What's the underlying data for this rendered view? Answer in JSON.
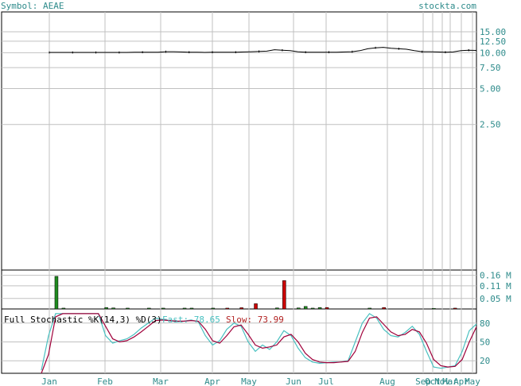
{
  "header": {
    "symbol_label": "Symbol: AEAE",
    "site": "stockta.com"
  },
  "colors": {
    "grid": "#c0c0c0",
    "axis_text": "#2e8b8b",
    "price": "#000000",
    "vol_up": "#1f8a1f",
    "vol_down": "#cc0000",
    "fast_line": "#48c0c0",
    "slow_line": "#a0003a"
  },
  "chart_data": [
    {
      "type": "line",
      "panel": "price",
      "y_scale": "log",
      "y_ticks": [
        "15.00",
        "12.50",
        "10.00",
        "7.50",
        "5.00",
        "2.50"
      ],
      "y_tick_values": [
        15,
        12.5,
        10,
        7.5,
        5,
        2.5
      ],
      "x_tick_labels": [
        "Jan",
        "Feb",
        "Mar",
        "Apr",
        "May",
        "Jun",
        "Jul",
        "Aug",
        "Sep",
        "Oct",
        "Nov",
        "Mar",
        "Apr",
        "May"
      ],
      "series": [
        {
          "values": [
            10.05,
            10.05,
            10.05,
            10.05,
            10.05,
            10.05,
            10.05,
            10.05,
            10.05,
            10.05,
            10.05,
            10.1,
            10.1,
            10.1,
            10.1,
            10.2,
            10.2,
            10.15,
            10.1,
            10.1,
            10.05,
            10.1,
            10.1,
            10.1,
            10.1,
            10.15,
            10.2,
            10.25,
            10.3,
            10.6,
            10.5,
            10.4,
            10.2,
            10.1,
            10.1,
            10.1,
            10.1,
            10.1,
            10.15,
            10.2,
            10.4,
            10.8,
            11,
            11.1,
            10.9,
            10.8,
            10.7,
            10.4,
            10.2,
            10.2,
            10.15,
            10.1,
            10.15,
            10.4,
            10.5,
            10.45
          ]
        }
      ]
    },
    {
      "type": "bar",
      "panel": "volume",
      "y_ticks": [
        "0.16 M",
        "0.11 M",
        "0.05 M"
      ],
      "y_tick_values": [
        0.16,
        0.11,
        0.05
      ],
      "series": [
        {
          "name": "volume",
          "values": [
            0,
            0.155,
            0.004,
            0,
            0,
            0,
            0,
            0,
            0.007,
            0.005,
            0,
            0.004,
            0,
            0,
            0.004,
            0,
            0.004,
            0,
            0,
            0.004,
            0.004,
            0,
            0,
            0.004,
            0,
            0.004,
            0,
            0.006,
            0,
            0.025,
            0,
            0,
            0.005,
            0.135,
            0,
            0.005,
            0.012,
            0.004,
            0.007,
            0.007,
            0,
            0,
            0,
            0,
            0,
            0.004,
            0,
            0.007,
            0,
            0,
            0,
            0,
            0,
            0,
            0.003,
            0,
            0,
            0.004,
            0,
            0,
            0
          ],
          "down_days": [
            25,
            27,
            29,
            33,
            39,
            47,
            57
          ]
        }
      ]
    },
    {
      "type": "line",
      "panel": "stochastic",
      "title": "Full Stochastic %K(14,3) %D(3)",
      "fast_label": "Fast: 78.65",
      "slow_label": "Slow: 73.99",
      "y_ticks": [
        "80",
        "50",
        "20"
      ],
      "y_tick_values": [
        80,
        50,
        20
      ],
      "ylim": [
        0,
        100
      ],
      "series": [
        {
          "name": "Fast",
          "values": [
            5,
            60,
            95,
            95,
            95,
            95,
            95,
            95,
            95,
            60,
            48,
            52,
            55,
            62,
            72,
            80,
            88,
            86,
            84,
            82,
            83,
            85,
            82,
            60,
            45,
            52,
            70,
            80,
            75,
            50,
            35,
            45,
            38,
            50,
            68,
            60,
            40,
            25,
            18,
            16,
            17,
            18,
            18,
            20,
            50,
            80,
            95,
            88,
            70,
            60,
            58,
            65,
            75,
            62,
            35,
            10,
            8,
            10,
            12,
            35,
            68,
            78.65
          ]
        },
        {
          "name": "Slow",
          "values": [
            0,
            30,
            90,
            95,
            95,
            95,
            95,
            95,
            95,
            75,
            55,
            50,
            52,
            58,
            66,
            75,
            84,
            85,
            84,
            83,
            83,
            84,
            83,
            70,
            52,
            48,
            60,
            74,
            77,
            62,
            45,
            40,
            42,
            45,
            58,
            62,
            50,
            32,
            22,
            18,
            17,
            17,
            18,
            19,
            35,
            65,
            88,
            90,
            78,
            66,
            60,
            62,
            70,
            66,
            48,
            22,
            12,
            10,
            11,
            22,
            50,
            73.99
          ]
        }
      ]
    }
  ]
}
